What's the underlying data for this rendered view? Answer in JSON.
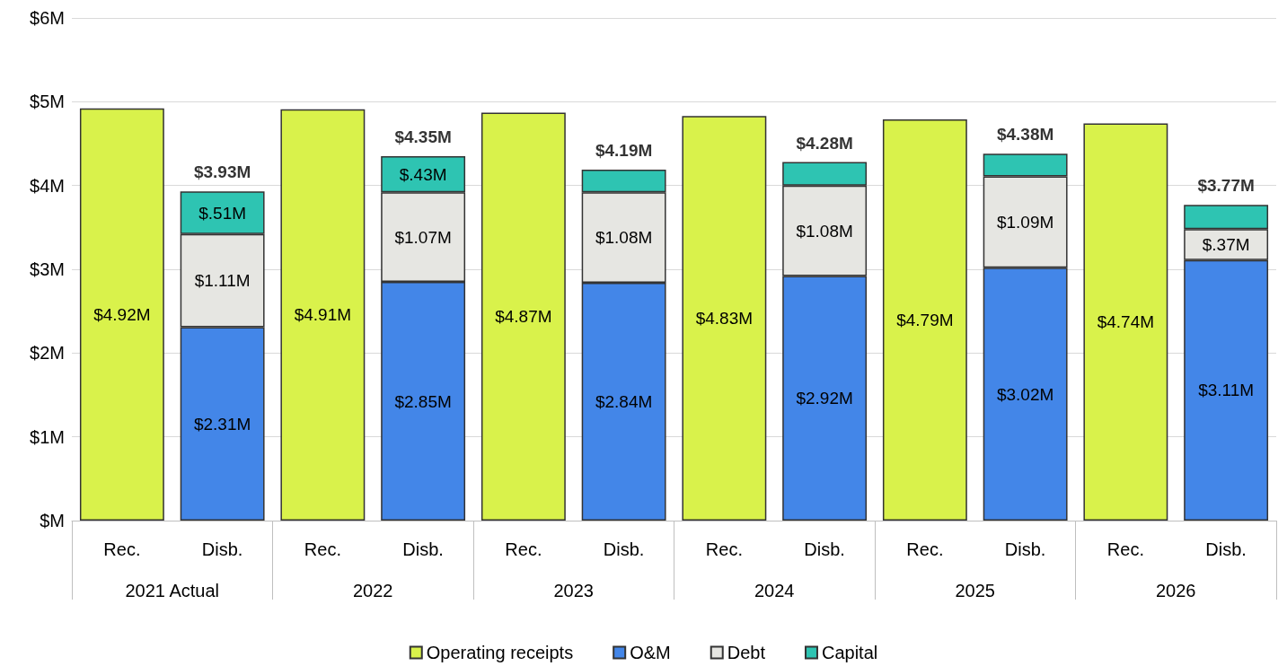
{
  "chart_data": {
    "type": "bar",
    "stacked": true,
    "categories": [
      "Rec.",
      "Disb.",
      "Rec.",
      "Disb.",
      "Rec.",
      "Disb.",
      "Rec.",
      "Disb.",
      "Rec.",
      "Disb.",
      "Rec.",
      "Disb."
    ],
    "annotations": [
      "2021 Actual",
      "2022",
      "2023",
      "2024",
      "2025",
      "2026"
    ],
    "series": [
      {
        "name": "Operating receipts",
        "color": "#d9f24b",
        "values": [
          4.92,
          null,
          4.91,
          null,
          4.87,
          null,
          4.83,
          null,
          4.79,
          null,
          4.74,
          null
        ],
        "value_labels": [
          "$4.92M",
          null,
          "$4.91M",
          null,
          "$4.87M",
          null,
          "$4.83M",
          null,
          "$4.79M",
          null,
          "$4.74M",
          null
        ]
      },
      {
        "name": "O&M",
        "color": "#4386e8",
        "values": [
          null,
          2.31,
          null,
          2.85,
          null,
          2.84,
          null,
          2.92,
          null,
          3.02,
          null,
          3.11
        ],
        "value_labels": [
          null,
          "$2.31M",
          null,
          "$2.85M",
          null,
          "$2.84M",
          null,
          "$2.92M",
          null,
          "$3.02M",
          null,
          "$3.11M"
        ]
      },
      {
        "name": "Debt",
        "color": "#e6e6e2",
        "values": [
          null,
          1.11,
          null,
          1.07,
          null,
          1.08,
          null,
          1.08,
          null,
          1.09,
          null,
          0.37
        ],
        "value_labels": [
          null,
          "$1.11M",
          null,
          "$1.07M",
          null,
          "$1.08M",
          null,
          "$1.08M",
          null,
          "$1.09M",
          null,
          "$.37M"
        ]
      },
      {
        "name": "Capital",
        "color": "#2ec4b2",
        "values": [
          null,
          0.51,
          null,
          0.43,
          null,
          0.27,
          null,
          0.28,
          null,
          0.27,
          null,
          0.29
        ],
        "value_labels": [
          null,
          "$.51M",
          null,
          "$.43M",
          null,
          null,
          null,
          null,
          null,
          null,
          null,
          null
        ]
      }
    ],
    "totals": [
      null,
      "$3.93M",
      null,
      "$4.35M",
      null,
      "$4.19M",
      null,
      "$4.28M",
      null,
      "$4.38M",
      null,
      "$3.77M"
    ],
    "ylim": [
      0,
      6
    ],
    "yticks": [
      {
        "value": 0,
        "label": "$M"
      },
      {
        "value": 1,
        "label": "$1M"
      },
      {
        "value": 2,
        "label": "$2M"
      },
      {
        "value": 3,
        "label": "$3M"
      },
      {
        "value": 4,
        "label": "$4M"
      },
      {
        "value": 5,
        "label": "$5M"
      },
      {
        "value": 6,
        "label": "$6M"
      }
    ],
    "grid": "y",
    "legend": "bottom"
  }
}
